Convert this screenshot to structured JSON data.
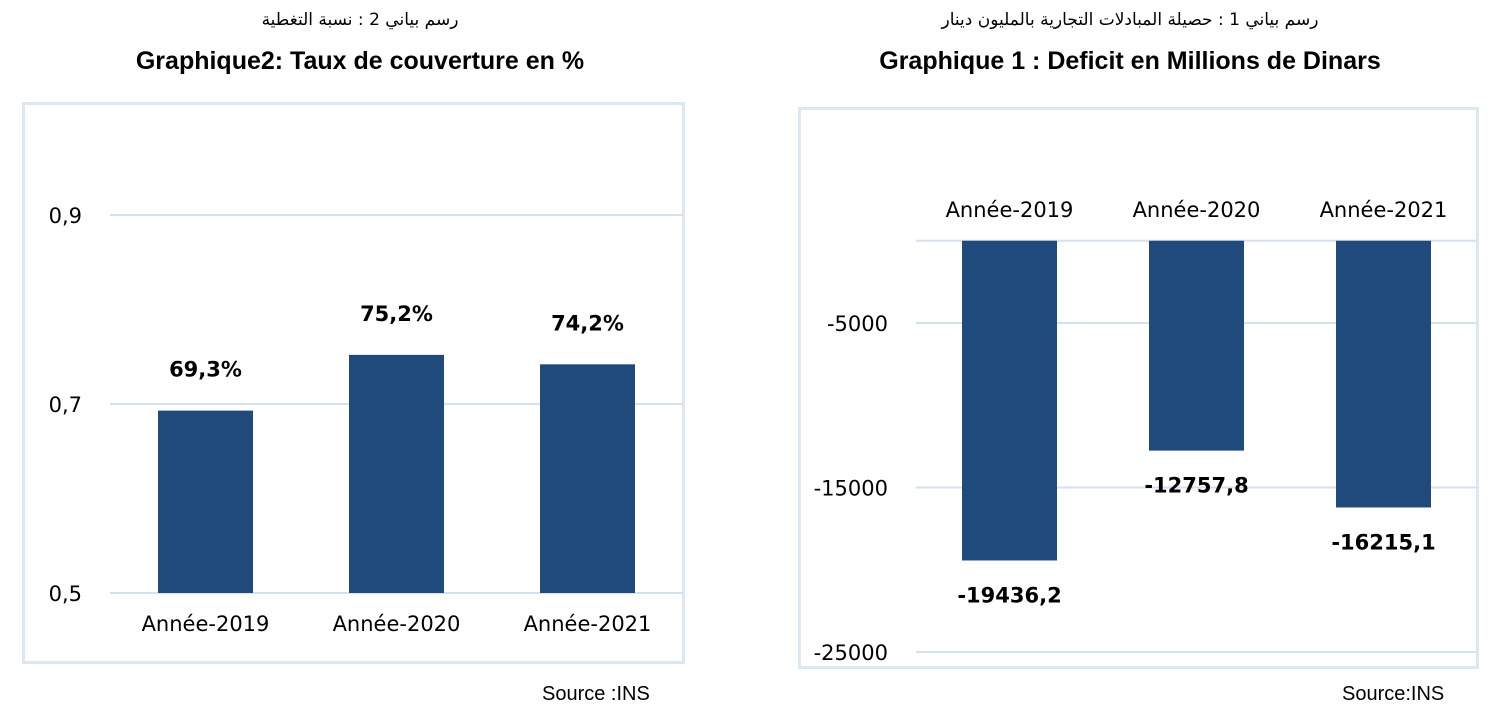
{
  "left_chart": {
    "subtitle_ar": "رسم بياني 2 : نسبة التغطية",
    "title": "Graphique2: Taux de couverture en %",
    "source": "Source :INS"
  },
  "right_chart": {
    "subtitle_ar": "رسم بياني 1 : حصيلة المبادلات التجارية بالمليون دينار",
    "title": "Graphique 1 : Deficit en Millions de Dinars",
    "source": "Source:INS"
  },
  "colors": {
    "bar": "#204a7c",
    "grid": "#d5e2ee",
    "frame": "#dbe7f3"
  },
  "chart_data": [
    {
      "type": "bar",
      "title": "Graphique2: Taux de couverture en %",
      "categories": [
        "Année-2019",
        "Année-2020",
        "Année-2021"
      ],
      "values": [
        0.693,
        0.752,
        0.742
      ],
      "data_labels": [
        "69,3%",
        "75,2%",
        "74,2%"
      ],
      "ylim": [
        0.5,
        0.9
      ],
      "yticks": [
        0.5,
        0.7,
        0.9
      ],
      "ytick_labels": [
        "0,5",
        "0,7",
        "0,9"
      ],
      "category_axis_position": "bottom",
      "grid": true,
      "source": "Source :INS"
    },
    {
      "type": "bar",
      "title": "Graphique 1 : Deficit en Millions de Dinars",
      "categories": [
        "Année-2019",
        "Année-2020",
        "Année-2021"
      ],
      "values": [
        -19436.2,
        -12757.8,
        -16215.1
      ],
      "data_labels": [
        "-19436,2",
        "-12757,8",
        "-16215,1"
      ],
      "ylim": [
        -25000,
        5000
      ],
      "yticks": [
        -25000,
        -15000,
        -5000
      ],
      "ytick_labels": [
        "-25000",
        "-15000",
        "-5000"
      ],
      "category_axis_position": "top",
      "grid": true,
      "source": "Source:INS"
    }
  ]
}
